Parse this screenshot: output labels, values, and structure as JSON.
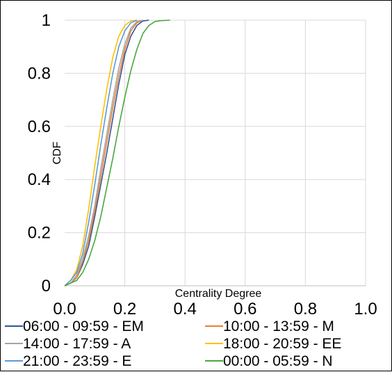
{
  "chart_data": {
    "type": "line",
    "title": "",
    "xlabel": "Centrality Degree",
    "ylabel": "CDF",
    "xlim": [
      0,
      1
    ],
    "ylim": [
      0,
      1
    ],
    "x_ticks": [
      "0.0",
      "0.2",
      "0.4",
      "0.6",
      "0.8",
      "1.0"
    ],
    "y_ticks": [
      "0",
      "0.2",
      "0.4",
      "0.6",
      "0.8",
      "1"
    ],
    "grid": true,
    "legend_position": "bottom",
    "series": [
      {
        "name": "06:00 - 09:59 - EM",
        "color": "#2f5597",
        "points": [
          [
            0,
            0
          ],
          [
            0.02,
            0.01
          ],
          [
            0.04,
            0.03
          ],
          [
            0.06,
            0.08
          ],
          [
            0.08,
            0.15
          ],
          [
            0.1,
            0.26
          ],
          [
            0.12,
            0.38
          ],
          [
            0.14,
            0.5
          ],
          [
            0.16,
            0.63
          ],
          [
            0.18,
            0.76
          ],
          [
            0.2,
            0.87
          ],
          [
            0.22,
            0.94
          ],
          [
            0.24,
            0.98
          ],
          [
            0.26,
            0.997
          ],
          [
            0.28,
            1.0
          ]
        ]
      },
      {
        "name": "10:00 - 13:59 - M",
        "color": "#ed7d31",
        "points": [
          [
            0,
            0
          ],
          [
            0.02,
            0.01
          ],
          [
            0.04,
            0.03
          ],
          [
            0.06,
            0.09
          ],
          [
            0.08,
            0.17
          ],
          [
            0.1,
            0.28
          ],
          [
            0.12,
            0.41
          ],
          [
            0.14,
            0.54
          ],
          [
            0.16,
            0.67
          ],
          [
            0.18,
            0.79
          ],
          [
            0.2,
            0.89
          ],
          [
            0.22,
            0.96
          ],
          [
            0.24,
            0.99
          ],
          [
            0.26,
            1.0
          ]
        ]
      },
      {
        "name": "14:00 - 17:59 - A",
        "color": "#a5a5a5",
        "points": [
          [
            0,
            0
          ],
          [
            0.02,
            0.01
          ],
          [
            0.04,
            0.04
          ],
          [
            0.06,
            0.1
          ],
          [
            0.08,
            0.19
          ],
          [
            0.1,
            0.3
          ],
          [
            0.12,
            0.44
          ],
          [
            0.14,
            0.57
          ],
          [
            0.16,
            0.7
          ],
          [
            0.18,
            0.82
          ],
          [
            0.2,
            0.91
          ],
          [
            0.22,
            0.97
          ],
          [
            0.24,
            0.995
          ],
          [
            0.26,
            1.0
          ]
        ]
      },
      {
        "name": "18:00 - 20:59 - EE",
        "color": "#ffc000",
        "points": [
          [
            0,
            0
          ],
          [
            0.02,
            0.02
          ],
          [
            0.04,
            0.06
          ],
          [
            0.06,
            0.15
          ],
          [
            0.08,
            0.29
          ],
          [
            0.1,
            0.45
          ],
          [
            0.12,
            0.6
          ],
          [
            0.14,
            0.74
          ],
          [
            0.16,
            0.86
          ],
          [
            0.18,
            0.94
          ],
          [
            0.2,
            0.98
          ],
          [
            0.22,
            0.997
          ],
          [
            0.24,
            1.0
          ]
        ]
      },
      {
        "name": "21:00 - 23:59 - E",
        "color": "#5b9bd5",
        "points": [
          [
            0,
            0
          ],
          [
            0.02,
            0.02
          ],
          [
            0.04,
            0.05
          ],
          [
            0.06,
            0.12
          ],
          [
            0.08,
            0.24
          ],
          [
            0.1,
            0.38
          ],
          [
            0.12,
            0.53
          ],
          [
            0.14,
            0.67
          ],
          [
            0.16,
            0.8
          ],
          [
            0.18,
            0.9
          ],
          [
            0.2,
            0.96
          ],
          [
            0.22,
            0.99
          ],
          [
            0.24,
            1.0
          ]
        ]
      },
      {
        "name": "00:00 - 05:59 - N",
        "color": "#4aa63f",
        "points": [
          [
            0,
            0
          ],
          [
            0.02,
            0.01
          ],
          [
            0.04,
            0.02
          ],
          [
            0.06,
            0.05
          ],
          [
            0.08,
            0.1
          ],
          [
            0.1,
            0.17
          ],
          [
            0.12,
            0.26
          ],
          [
            0.14,
            0.37
          ],
          [
            0.16,
            0.48
          ],
          [
            0.18,
            0.6
          ],
          [
            0.2,
            0.71
          ],
          [
            0.22,
            0.81
          ],
          [
            0.24,
            0.89
          ],
          [
            0.26,
            0.95
          ],
          [
            0.28,
            0.98
          ],
          [
            0.3,
            0.995
          ],
          [
            0.32,
            0.998
          ],
          [
            0.35,
            1.0
          ]
        ]
      }
    ]
  }
}
